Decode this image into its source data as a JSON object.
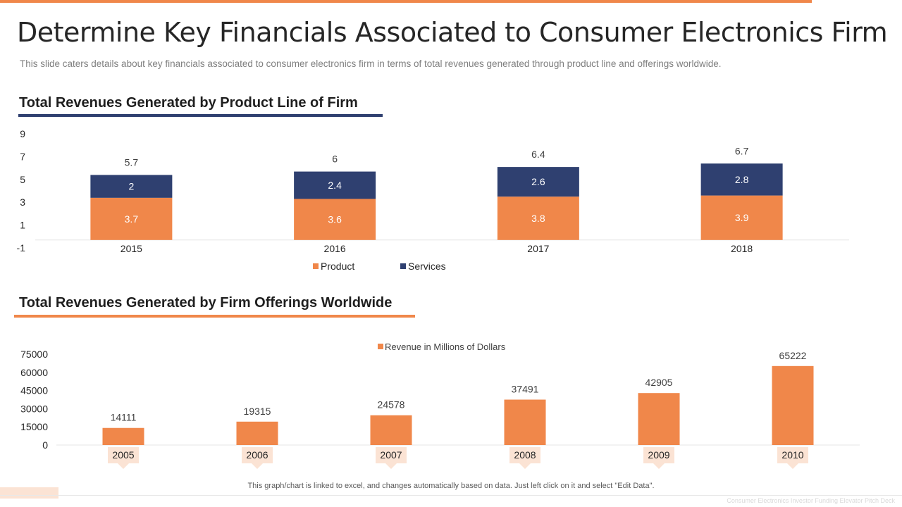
{
  "slide": {
    "title": "Determine Key Financials Associated to Consumer Electronics Firm",
    "subtitle": "This slide caters details about key financials associated to consumer electronics firm in terms of total revenues generated through product line and offerings worldwide.",
    "footer_note": "This graph/chart is linked to excel, and changes automatically based on data. Just left click on it and select \"Edit Data\".",
    "footer_brand": "Consumer Electronics Investor Funding Elevator Pitch Deck"
  },
  "colors": {
    "accent": "#f0874a",
    "navy": "#2f4070"
  },
  "chart_data": [
    {
      "type": "bar",
      "stacked": true,
      "title": "Total Revenues Generated by Product Line of Firm",
      "categories": [
        "2015",
        "2016",
        "2017",
        "2018"
      ],
      "series": [
        {
          "name": "Product",
          "values": [
            3.7,
            3.6,
            3.8,
            3.9
          ],
          "color": "#f0874a"
        },
        {
          "name": "Services",
          "values": [
            2,
            2.4,
            2.6,
            2.8
          ],
          "color": "#2f4070"
        }
      ],
      "totals": [
        5.7,
        6,
        6.4,
        6.7
      ],
      "yticks": [
        9,
        7,
        5,
        3,
        1,
        -1
      ],
      "ylim": [
        -1,
        9
      ],
      "legend": "bottom"
    },
    {
      "type": "bar",
      "title": "Total Revenues Generated by Firm Offerings Worldwide",
      "categories": [
        "2005",
        "2006",
        "2007",
        "2008",
        "2009",
        "2010"
      ],
      "series": [
        {
          "name": "Revenue in Millions of Dollars",
          "values": [
            14111,
            19315,
            24578,
            37491,
            42905,
            65222
          ],
          "color": "#f0874a"
        }
      ],
      "yticks": [
        75000,
        60000,
        45000,
        30000,
        15000,
        0
      ],
      "ylim": [
        0,
        75000
      ],
      "legend": "top"
    }
  ]
}
